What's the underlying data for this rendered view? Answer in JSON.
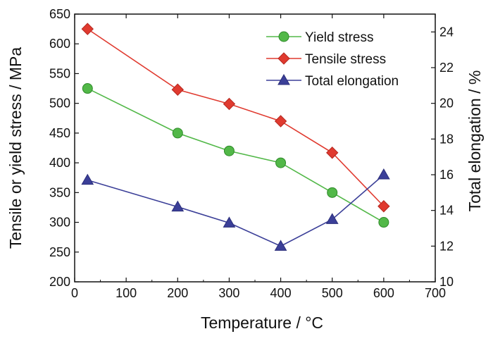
{
  "chart_data": {
    "type": "line",
    "xlabel": "Temperature / °C",
    "ylabel_left": "Tensile or yield stress / MPa",
    "ylabel_right": "Total elongation / %",
    "xlim": [
      0,
      700
    ],
    "ylim_left": [
      200,
      650
    ],
    "ylim_right": [
      10,
      25
    ],
    "x_ticks": [
      0,
      100,
      200,
      300,
      400,
      500,
      600,
      700
    ],
    "y_left_ticks": [
      200,
      250,
      300,
      350,
      400,
      450,
      500,
      550,
      600,
      650
    ],
    "y_right_ticks": [
      10,
      12,
      14,
      16,
      18,
      20,
      22,
      24
    ],
    "grid": false,
    "legend_position": "top-right",
    "series": [
      {
        "name": "Yield stress",
        "axis": "left",
        "color": "#52b848",
        "marker": "circle",
        "x": [
          25,
          200,
          300,
          400,
          500,
          600
        ],
        "y": [
          525,
          450,
          420,
          400,
          350,
          300
        ]
      },
      {
        "name": "Tensile stress",
        "axis": "left",
        "color": "#e03a2f",
        "marker": "diamond",
        "x": [
          25,
          200,
          300,
          400,
          500,
          600
        ],
        "y": [
          625,
          523,
          499,
          470,
          417,
          327
        ]
      },
      {
        "name": "Total elongation",
        "axis": "right",
        "color": "#3b3f98",
        "marker": "triangle",
        "x": [
          25,
          200,
          300,
          400,
          500,
          600
        ],
        "y": [
          15.7,
          14.2,
          13.3,
          12.0,
          13.5,
          16.0
        ]
      }
    ]
  }
}
